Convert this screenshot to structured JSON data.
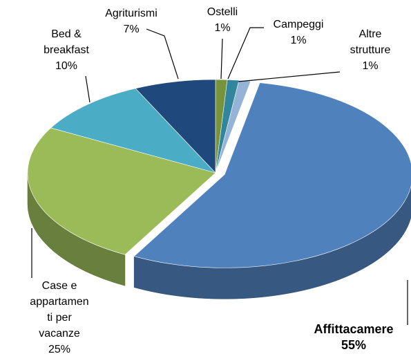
{
  "chart_data": {
    "type": "pie3d",
    "categories": [
      "Ostelli",
      "Campeggi",
      "Altre strutture",
      "Affittacamere",
      "Case e appartamenti per vacanze",
      "Bed & breakfast",
      "Agriturismi"
    ],
    "values": [
      1,
      1,
      1,
      55,
      25,
      10,
      7
    ],
    "value_labels": [
      "1%",
      "1%",
      "1%",
      "55%",
      "25%",
      "10%",
      "7%"
    ],
    "colors": [
      "#77933c",
      "#31859c",
      "#95b3d7",
      "#4f81bd",
      "#9bbb59",
      "#4bacc6",
      "#1f497d"
    ],
    "explode": [
      false,
      false,
      false,
      true,
      false,
      false,
      false
    ]
  }
}
